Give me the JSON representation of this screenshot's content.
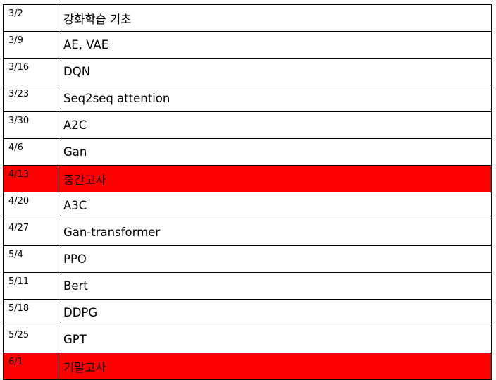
{
  "schedule": {
    "rows": [
      {
        "date": "3/2",
        "topic": "강화학습 기초",
        "highlight": false
      },
      {
        "date": "3/9",
        "topic": "AE, VAE",
        "highlight": false
      },
      {
        "date": "3/16",
        "topic": "DQN",
        "highlight": false
      },
      {
        "date": "3/23",
        "topic": "Seq2seq attention",
        "highlight": false
      },
      {
        "date": "3/30",
        "topic": "A2C",
        "highlight": false
      },
      {
        "date": "4/6",
        "topic": "Gan",
        "highlight": false
      },
      {
        "date": "4/13",
        "topic": "중간고사",
        "highlight": true
      },
      {
        "date": "4/20",
        "topic": "A3C",
        "highlight": false
      },
      {
        "date": "4/27",
        "topic": "Gan-transformer",
        "highlight": false
      },
      {
        "date": "5/4",
        "topic": "PPO",
        "highlight": false
      },
      {
        "date": "5/11",
        "topic": "Bert",
        "highlight": false
      },
      {
        "date": "5/18",
        "topic": "DDPG",
        "highlight": false
      },
      {
        "date": "5/25",
        "topic": "GPT",
        "highlight": false
      },
      {
        "date": "6/1",
        "topic": "기말고사",
        "highlight": true
      }
    ],
    "highlight_color": "#ff0000"
  }
}
